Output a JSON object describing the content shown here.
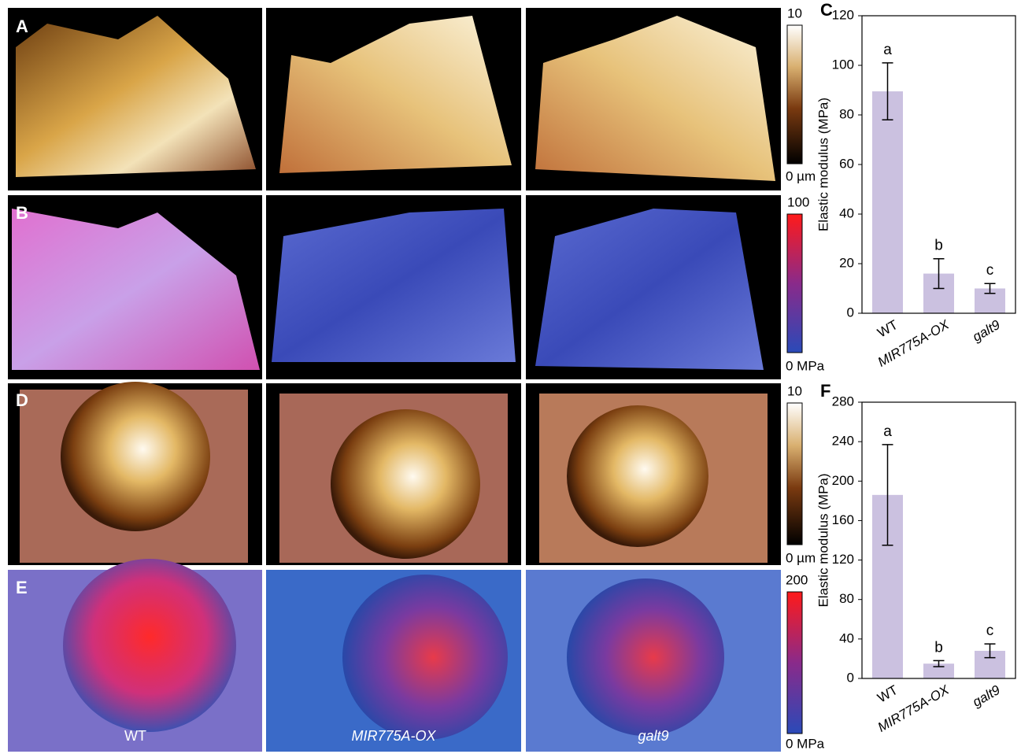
{
  "panel_labels": [
    "A",
    "B",
    "C",
    "D",
    "E",
    "F"
  ],
  "colorbars": [
    {
      "max": "10",
      "min": "0 µm"
    },
    {
      "max": "100",
      "min": "0 MPa"
    },
    {
      "max": "10",
      "min": "0 µm"
    },
    {
      "max": "200",
      "min": "0 MPa"
    }
  ],
  "image_labels": [
    "WT",
    "MIR775A-OX",
    "galt9"
  ],
  "chart_data": [
    {
      "type": "bar",
      "y_label": "Elastic modulus (MPa)",
      "categories": [
        "WT",
        "MIR775A-OX",
        "galt9"
      ],
      "values": [
        89.5,
        16,
        10
      ],
      "errors": [
        11.5,
        6,
        2
      ],
      "annotations": [
        "a",
        "b",
        "c"
      ],
      "color": "#cbc1e0",
      "ylim": [
        0,
        120
      ],
      "yticks": [
        0,
        20,
        40,
        60,
        80,
        100,
        120
      ]
    },
    {
      "type": "bar",
      "y_label": "Elastic modulus (MPa)",
      "categories": [
        "WT",
        "MIR775A-OX",
        "galt9"
      ],
      "values": [
        186,
        15,
        28
      ],
      "errors": [
        51,
        3,
        7
      ],
      "annotations": [
        "a",
        "b",
        "c"
      ],
      "color": "#cbc1e0",
      "ylim": [
        0,
        280
      ],
      "yticks": [
        0,
        40,
        80,
        120,
        160,
        200,
        240,
        280
      ]
    }
  ]
}
